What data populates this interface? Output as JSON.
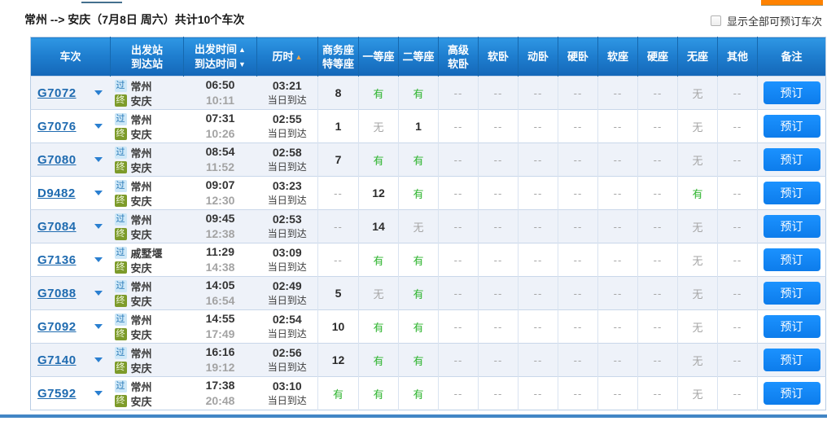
{
  "header": {
    "title_route": "常州 --> 安庆（7月8日  周六）",
    "title_count": "共计10个车次",
    "show_all_label": "显示全部可预订车次"
  },
  "colors": {
    "header_blue": "#1f7fd0",
    "book_button_blue": "#0f85f2",
    "available_green": "#2fb42f",
    "unavailable_gray": "#a6a6a6",
    "train_link_blue": "#1f6bb0",
    "duration_sort_orange": "#f5a545",
    "bottom_bar_blue": "#4286c5",
    "top_fragment_orange": "#ff8201",
    "pass_badge_bg": "#cde7f7",
    "terminal_badge_bg": "#7d9b2a"
  },
  "table": {
    "book_label": "预订",
    "columns": [
      {
        "id": "train-no",
        "label": "车次"
      },
      {
        "id": "stations",
        "label": "出发站\n到达站"
      },
      {
        "id": "times",
        "label": "出发时间\n到达时间",
        "arrows": [
          "up-white",
          "down-white"
        ],
        "sortable": true
      },
      {
        "id": "duration",
        "label": "历时",
        "arrows": [
          "up-orange"
        ],
        "sortable": true
      },
      {
        "id": "business-seat",
        "label": "商务座\n特等座"
      },
      {
        "id": "first-class",
        "label": "一等座"
      },
      {
        "id": "second-class",
        "label": "二等座"
      },
      {
        "id": "premium-soft-sleeper",
        "label": "高级\n软卧"
      },
      {
        "id": "soft-sleeper",
        "label": "软卧"
      },
      {
        "id": "emu-sleeper",
        "label": "动卧"
      },
      {
        "id": "hard-sleeper",
        "label": "硬卧"
      },
      {
        "id": "soft-seat",
        "label": "软座"
      },
      {
        "id": "hard-seat",
        "label": "硬座"
      },
      {
        "id": "no-seat",
        "label": "无座"
      },
      {
        "id": "other",
        "label": "其他"
      },
      {
        "id": "remarks",
        "label": "备注"
      }
    ],
    "rows": [
      {
        "train_no": "G7072",
        "dep_badge": "过",
        "dep_station": "常州",
        "arr_badge": "终",
        "arr_station": "安庆",
        "dep_time": "06:50",
        "arr_time": "10:11",
        "duration": "03:21",
        "arrive_note": "当日到达",
        "seats": [
          "8",
          "有",
          "有",
          "--",
          "--",
          "--",
          "--",
          "--",
          "--",
          "无",
          "--"
        ]
      },
      {
        "train_no": "G7076",
        "dep_badge": "过",
        "dep_station": "常州",
        "arr_badge": "终",
        "arr_station": "安庆",
        "dep_time": "07:31",
        "arr_time": "10:26",
        "duration": "02:55",
        "arrive_note": "当日到达",
        "seats": [
          "1",
          "无",
          "1",
          "--",
          "--",
          "--",
          "--",
          "--",
          "--",
          "无",
          "--"
        ]
      },
      {
        "train_no": "G7080",
        "dep_badge": "过",
        "dep_station": "常州",
        "arr_badge": "终",
        "arr_station": "安庆",
        "dep_time": "08:54",
        "arr_time": "11:52",
        "duration": "02:58",
        "arrive_note": "当日到达",
        "seats": [
          "7",
          "有",
          "有",
          "--",
          "--",
          "--",
          "--",
          "--",
          "--",
          "无",
          "--"
        ]
      },
      {
        "train_no": "D9482",
        "dep_badge": "过",
        "dep_station": "常州",
        "arr_badge": "终",
        "arr_station": "安庆",
        "dep_time": "09:07",
        "arr_time": "12:30",
        "duration": "03:23",
        "arrive_note": "当日到达",
        "seats": [
          "--",
          "12",
          "有",
          "--",
          "--",
          "--",
          "--",
          "--",
          "--",
          "有",
          "--"
        ]
      },
      {
        "train_no": "G7084",
        "dep_badge": "过",
        "dep_station": "常州",
        "arr_badge": "终",
        "arr_station": "安庆",
        "dep_time": "09:45",
        "arr_time": "12:38",
        "duration": "02:53",
        "arrive_note": "当日到达",
        "seats": [
          "--",
          "14",
          "无",
          "--",
          "--",
          "--",
          "--",
          "--",
          "--",
          "无",
          "--"
        ]
      },
      {
        "train_no": "G7136",
        "dep_badge": "过",
        "dep_station": "戚墅堰",
        "arr_badge": "终",
        "arr_station": "安庆",
        "dep_time": "11:29",
        "arr_time": "14:38",
        "duration": "03:09",
        "arrive_note": "当日到达",
        "seats": [
          "--",
          "有",
          "有",
          "--",
          "--",
          "--",
          "--",
          "--",
          "--",
          "无",
          "--"
        ]
      },
      {
        "train_no": "G7088",
        "dep_badge": "过",
        "dep_station": "常州",
        "arr_badge": "终",
        "arr_station": "安庆",
        "dep_time": "14:05",
        "arr_time": "16:54",
        "duration": "02:49",
        "arrive_note": "当日到达",
        "seats": [
          "5",
          "无",
          "有",
          "--",
          "--",
          "--",
          "--",
          "--",
          "--",
          "无",
          "--"
        ]
      },
      {
        "train_no": "G7092",
        "dep_badge": "过",
        "dep_station": "常州",
        "arr_badge": "终",
        "arr_station": "安庆",
        "dep_time": "14:55",
        "arr_time": "17:49",
        "duration": "02:54",
        "arrive_note": "当日到达",
        "seats": [
          "10",
          "有",
          "有",
          "--",
          "--",
          "--",
          "--",
          "--",
          "--",
          "无",
          "--"
        ]
      },
      {
        "train_no": "G7140",
        "dep_badge": "过",
        "dep_station": "常州",
        "arr_badge": "终",
        "arr_station": "安庆",
        "dep_time": "16:16",
        "arr_time": "19:12",
        "duration": "02:56",
        "arrive_note": "当日到达",
        "seats": [
          "12",
          "有",
          "有",
          "--",
          "--",
          "--",
          "--",
          "--",
          "--",
          "无",
          "--"
        ]
      },
      {
        "train_no": "G7592",
        "dep_badge": "过",
        "dep_station": "常州",
        "arr_badge": "终",
        "arr_station": "安庆",
        "dep_time": "17:38",
        "arr_time": "20:48",
        "duration": "03:10",
        "arrive_note": "当日到达",
        "seats": [
          "有",
          "有",
          "有",
          "--",
          "--",
          "--",
          "--",
          "--",
          "--",
          "无",
          "--"
        ]
      }
    ]
  }
}
